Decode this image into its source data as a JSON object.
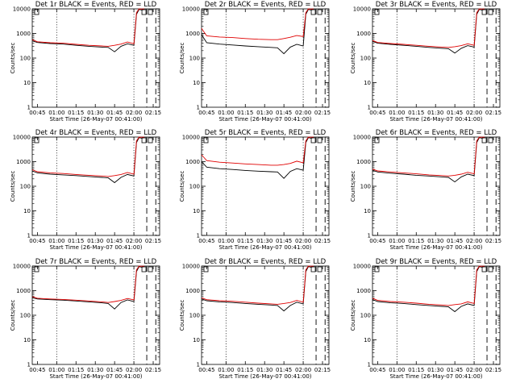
{
  "colors": {
    "events": "#000000",
    "lld": "#e00000"
  },
  "chart_data": [
    {
      "type": "line",
      "title": "Det 1r BLACK = Events, RED = LLD",
      "xlabel": "Start Time (26-May-07 00:41:00)",
      "ylabel": "Counts/sec",
      "yscale": "log",
      "ylim": [
        1,
        10000
      ],
      "xlim": [
        "00:41",
        "02:20"
      ],
      "x_ticks": [
        "00:45",
        "01:00",
        "01:15",
        "01:30",
        "01:45",
        "02:00",
        "02:15"
      ],
      "y_ticks": [
        "1",
        "10",
        "100",
        "1000",
        "10000"
      ],
      "dotted_lines": [
        "01:00",
        "02:00"
      ],
      "dashed_lines": [
        "02:10",
        "02:17"
      ],
      "markers": [
        "S",
        "C",
        "S"
      ],
      "x": [
        "00:41",
        "00:45",
        "00:55",
        "01:05",
        "01:15",
        "01:25",
        "01:35",
        "01:40",
        "01:45",
        "01:50",
        "01:55",
        "02:00",
        "02:02",
        "02:04",
        "02:06",
        "02:08"
      ],
      "series": [
        {
          "name": "Events",
          "color": "#000000",
          "values": [
            500,
            430,
            390,
            370,
            330,
            300,
            280,
            270,
            180,
            300,
            380,
            330,
            6000,
            9500,
            9000,
            9500
          ]
        },
        {
          "name": "LLD",
          "color": "#e00000",
          "values": [
            560,
            460,
            420,
            400,
            360,
            330,
            310,
            300,
            330,
            370,
            450,
            380,
            7000,
            10500,
            9800,
            10500
          ]
        }
      ]
    },
    {
      "type": "line",
      "title": "Det 2r BLACK = Events, RED = LLD",
      "xlabel": "Start Time (26-May-07 00:41:00)",
      "ylabel": "Counts/sec",
      "yscale": "log",
      "ylim": [
        1,
        10000
      ],
      "xlim": [
        "00:41",
        "02:20"
      ],
      "x_ticks": [
        "00:45",
        "01:00",
        "01:15",
        "01:30",
        "01:45",
        "02:00",
        "02:15"
      ],
      "y_ticks": [
        "1",
        "10",
        "100",
        "1000",
        "10000"
      ],
      "dotted_lines": [
        "01:00",
        "02:00"
      ],
      "dashed_lines": [
        "02:10",
        "02:17"
      ],
      "markers": [
        "S",
        "C",
        "S"
      ],
      "x": [
        "00:41",
        "00:45",
        "00:55",
        "01:05",
        "01:15",
        "01:25",
        "01:35",
        "01:40",
        "01:45",
        "01:50",
        "01:55",
        "02:00",
        "02:02",
        "02:04",
        "02:06",
        "02:08"
      ],
      "series": [
        {
          "name": "Events",
          "color": "#000000",
          "values": [
            900,
            420,
            370,
            340,
            310,
            290,
            270,
            260,
            150,
            280,
            360,
            310,
            6000,
            9500,
            9000,
            9500
          ]
        },
        {
          "name": "LLD",
          "color": "#e00000",
          "values": [
            1600,
            800,
            720,
            680,
            620,
            580,
            560,
            560,
            620,
            700,
            820,
            750,
            7000,
            10500,
            9800,
            10500
          ]
        }
      ]
    },
    {
      "type": "line",
      "title": "Det 3r BLACK = Events, RED = LLD",
      "xlabel": "Start Time (26-May-07 00:41:00)",
      "ylabel": "Counts/sec",
      "yscale": "log",
      "ylim": [
        1,
        10000
      ],
      "xlim": [
        "00:41",
        "02:20"
      ],
      "x_ticks": [
        "00:45",
        "01:00",
        "01:15",
        "01:30",
        "01:45",
        "02:00",
        "02:15"
      ],
      "y_ticks": [
        "1",
        "10",
        "100",
        "1000",
        "10000"
      ],
      "dotted_lines": [
        "01:00",
        "02:00"
      ],
      "dashed_lines": [
        "02:10",
        "02:17"
      ],
      "markers": [
        "S",
        "C",
        "S"
      ],
      "x": [
        "00:41",
        "00:45",
        "00:55",
        "01:05",
        "01:15",
        "01:25",
        "01:35",
        "01:40",
        "01:45",
        "01:50",
        "01:55",
        "02:00",
        "02:02",
        "02:04",
        "02:06",
        "02:08"
      ],
      "series": [
        {
          "name": "Events",
          "color": "#000000",
          "values": [
            480,
            400,
            360,
            330,
            300,
            270,
            250,
            240,
            160,
            250,
            320,
            280,
            6000,
            9500,
            9000,
            9500
          ]
        },
        {
          "name": "LLD",
          "color": "#e00000",
          "values": [
            520,
            430,
            390,
            360,
            330,
            300,
            280,
            270,
            290,
            320,
            380,
            330,
            7000,
            10500,
            9800,
            10500
          ]
        }
      ]
    },
    {
      "type": "line",
      "title": "Det 4r BLACK = Events, RED = LLD",
      "xlabel": "Start Time (26-May-07 00:41:00)",
      "ylabel": "Counts/sec",
      "yscale": "log",
      "ylim": [
        1,
        10000
      ],
      "xlim": [
        "00:41",
        "02:20"
      ],
      "x_ticks": [
        "00:45",
        "01:00",
        "01:15",
        "01:30",
        "01:45",
        "02:00",
        "02:15"
      ],
      "y_ticks": [
        "1",
        "10",
        "100",
        "1000",
        "10000"
      ],
      "dotted_lines": [
        "01:00",
        "02:00"
      ],
      "dashed_lines": [
        "02:10",
        "02:17"
      ],
      "markers": [
        "S",
        "C",
        "S"
      ],
      "x": [
        "00:41",
        "00:45",
        "00:55",
        "01:05",
        "01:15",
        "01:25",
        "01:35",
        "01:40",
        "01:45",
        "01:50",
        "01:55",
        "02:00",
        "02:02",
        "02:04",
        "02:06",
        "02:08"
      ],
      "series": [
        {
          "name": "Events",
          "color": "#000000",
          "values": [
            420,
            350,
            310,
            290,
            270,
            250,
            230,
            220,
            140,
            230,
            300,
            260,
            6000,
            9500,
            9000,
            9500
          ]
        },
        {
          "name": "LLD",
          "color": "#e00000",
          "values": [
            470,
            390,
            350,
            330,
            300,
            280,
            260,
            250,
            270,
            300,
            360,
            310,
            7000,
            10500,
            9800,
            10500
          ]
        }
      ]
    },
    {
      "type": "line",
      "title": "Det 5r BLACK = Events, RED = LLD",
      "xlabel": "Start Time (26-May-07 00:41:00)",
      "ylabel": "Counts/sec",
      "yscale": "log",
      "ylim": [
        1,
        10000
      ],
      "xlim": [
        "00:41",
        "02:20"
      ],
      "x_ticks": [
        "00:45",
        "01:00",
        "01:15",
        "01:30",
        "01:45",
        "02:00",
        "02:15"
      ],
      "y_ticks": [
        "1",
        "10",
        "100",
        "1000",
        "10000"
      ],
      "dotted_lines": [
        "01:00",
        "02:00"
      ],
      "dashed_lines": [
        "02:10",
        "02:17"
      ],
      "markers": [
        "S",
        "C",
        "S"
      ],
      "x": [
        "00:41",
        "00:45",
        "00:55",
        "01:05",
        "01:15",
        "01:25",
        "01:35",
        "01:40",
        "01:45",
        "01:50",
        "01:55",
        "02:00",
        "02:02",
        "02:04",
        "02:06",
        "02:08"
      ],
      "series": [
        {
          "name": "Events",
          "color": "#000000",
          "values": [
            1000,
            600,
            520,
            480,
            440,
            410,
            390,
            380,
            210,
            400,
            520,
            450,
            6000,
            9500,
            9000,
            9500
          ]
        },
        {
          "name": "LLD",
          "color": "#e00000",
          "values": [
            1900,
            1100,
            950,
            880,
            810,
            760,
            720,
            720,
            760,
            850,
            1050,
            900,
            7000,
            10500,
            9800,
            10500
          ]
        }
      ]
    },
    {
      "type": "line",
      "title": "Det 6r BLACK = Events, RED = LLD",
      "xlabel": "Start Time (26-May-07 00:41:00)",
      "ylabel": "Counts/sec",
      "yscale": "log",
      "ylim": [
        1,
        10000
      ],
      "xlim": [
        "00:41",
        "02:20"
      ],
      "x_ticks": [
        "00:45",
        "01:00",
        "01:15",
        "01:30",
        "01:45",
        "02:00",
        "02:15"
      ],
      "y_ticks": [
        "1",
        "10",
        "100",
        "1000",
        "10000"
      ],
      "dotted_lines": [
        "01:00",
        "02:00"
      ],
      "dashed_lines": [
        "02:10",
        "02:17"
      ],
      "markers": [
        "S",
        "C",
        "S"
      ],
      "x": [
        "00:41",
        "00:45",
        "00:55",
        "01:05",
        "01:15",
        "01:25",
        "01:35",
        "01:40",
        "01:45",
        "01:50",
        "01:55",
        "02:00",
        "02:02",
        "02:04",
        "02:06",
        "02:08"
      ],
      "series": [
        {
          "name": "Events",
          "color": "#000000",
          "values": [
            450,
            380,
            340,
            310,
            280,
            260,
            240,
            230,
            150,
            240,
            310,
            270,
            6000,
            9500,
            9000,
            9500
          ]
        },
        {
          "name": "LLD",
          "color": "#e00000",
          "values": [
            500,
            420,
            380,
            350,
            320,
            290,
            270,
            260,
            280,
            310,
            370,
            320,
            7000,
            10500,
            9800,
            10500
          ]
        }
      ]
    },
    {
      "type": "line",
      "title": "Det 7r BLACK = Events, RED = LLD",
      "xlabel": "Start Time (26-May-07 00:41:00)",
      "ylabel": "Counts/sec",
      "yscale": "log",
      "ylim": [
        1,
        10000
      ],
      "xlim": [
        "00:41",
        "02:20"
      ],
      "x_ticks": [
        "00:45",
        "01:00",
        "01:15",
        "01:30",
        "01:45",
        "02:00",
        "02:15"
      ],
      "y_ticks": [
        "1",
        "10",
        "100",
        "1000",
        "10000"
      ],
      "dotted_lines": [
        "01:00",
        "02:00"
      ],
      "dashed_lines": [
        "02:10",
        "02:17"
      ],
      "markers": [
        "S",
        "C",
        "S"
      ],
      "x": [
        "00:41",
        "00:45",
        "00:55",
        "01:05",
        "01:15",
        "01:25",
        "01:35",
        "01:40",
        "01:45",
        "01:50",
        "01:55",
        "02:00",
        "02:02",
        "02:04",
        "02:06",
        "02:08"
      ],
      "series": [
        {
          "name": "Events",
          "color": "#000000",
          "values": [
            520,
            460,
            430,
            410,
            380,
            350,
            320,
            300,
            180,
            330,
            420,
            360,
            6000,
            9500,
            9000,
            9500
          ]
        },
        {
          "name": "LLD",
          "color": "#e00000",
          "values": [
            570,
            490,
            460,
            440,
            410,
            380,
            350,
            330,
            360,
            400,
            480,
            420,
            7000,
            10500,
            9800,
            10500
          ]
        }
      ]
    },
    {
      "type": "line",
      "title": "Det 8r BLACK = Events, RED = LLD",
      "xlabel": "Start Time (26-May-07 00:41:00)",
      "ylabel": "Counts/sec",
      "yscale": "log",
      "ylim": [
        1,
        10000
      ],
      "xlim": [
        "00:41",
        "02:20"
      ],
      "x_ticks": [
        "00:45",
        "01:00",
        "01:15",
        "01:30",
        "01:45",
        "02:00",
        "02:15"
      ],
      "y_ticks": [
        "1",
        "10",
        "100",
        "1000",
        "10000"
      ],
      "dotted_lines": [
        "01:00",
        "02:00"
      ],
      "dashed_lines": [
        "02:10",
        "02:17"
      ],
      "markers": [
        "S",
        "C",
        "S"
      ],
      "x": [
        "00:41",
        "00:45",
        "00:55",
        "01:05",
        "01:15",
        "01:25",
        "01:35",
        "01:40",
        "01:45",
        "01:50",
        "01:55",
        "02:00",
        "02:02",
        "02:04",
        "02:06",
        "02:08"
      ],
      "series": [
        {
          "name": "Events",
          "color": "#000000",
          "values": [
            460,
            390,
            350,
            330,
            300,
            280,
            260,
            250,
            150,
            250,
            340,
            290,
            6000,
            9500,
            9000,
            9500
          ]
        },
        {
          "name": "LLD",
          "color": "#e00000",
          "values": [
            510,
            430,
            390,
            370,
            340,
            310,
            290,
            280,
            300,
            330,
            400,
            340,
            7000,
            10500,
            9800,
            10500
          ]
        }
      ]
    },
    {
      "type": "line",
      "title": "Det 9r BLACK = Events, RED = LLD",
      "xlabel": "Start Time (26-May-07 00:41:00)",
      "ylabel": "Counts/sec",
      "yscale": "log",
      "ylim": [
        1,
        10000
      ],
      "xlim": [
        "00:41",
        "02:20"
      ],
      "x_ticks": [
        "00:45",
        "01:00",
        "01:15",
        "01:30",
        "01:45",
        "02:00",
        "02:15"
      ],
      "y_ticks": [
        "1",
        "10",
        "100",
        "1000",
        "10000"
      ],
      "dotted_lines": [
        "01:00",
        "02:00"
      ],
      "dashed_lines": [
        "02:10",
        "02:17"
      ],
      "markers": [
        "S",
        "C",
        "S"
      ],
      "x": [
        "00:41",
        "00:45",
        "00:55",
        "01:05",
        "01:15",
        "01:25",
        "01:35",
        "01:40",
        "01:45",
        "01:50",
        "01:55",
        "02:00",
        "02:02",
        "02:04",
        "02:06",
        "02:08"
      ],
      "series": [
        {
          "name": "Events",
          "color": "#000000",
          "values": [
            440,
            360,
            320,
            300,
            270,
            250,
            230,
            220,
            140,
            230,
            290,
            250,
            6000,
            9500,
            9000,
            9500
          ]
        },
        {
          "name": "LLD",
          "color": "#e00000",
          "values": [
            490,
            400,
            360,
            340,
            310,
            280,
            260,
            250,
            270,
            290,
            350,
            300,
            7000,
            10500,
            9800,
            10500
          ]
        }
      ]
    }
  ]
}
